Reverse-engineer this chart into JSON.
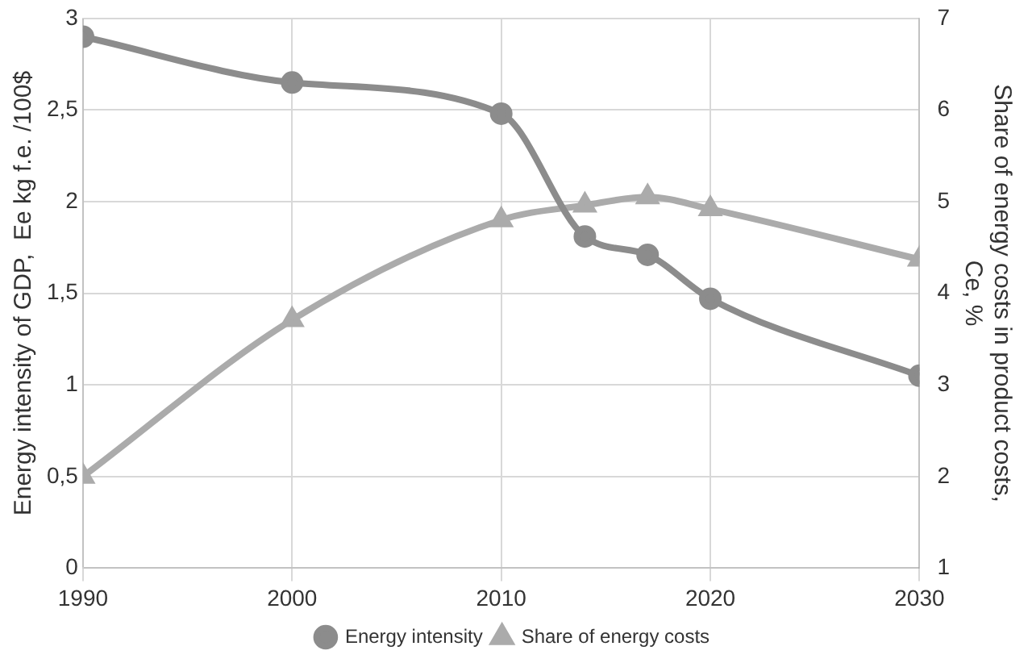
{
  "chart_data": {
    "type": "line",
    "xlabel": null,
    "ylabel": "Energy intensity of GDP,  Ee kg f.e. /100$",
    "y2label": "Share of energy costs in product costs, Ce, %",
    "x": [
      1990,
      2000,
      2010,
      2014,
      2017,
      2020,
      2030
    ],
    "series": [
      {
        "name": "Energy intensity",
        "color": "#8c8c8c",
        "marker": "circle",
        "values": [
          2.9,
          2.65,
          2.48,
          1.81,
          1.71,
          1.47,
          1.05
        ]
      },
      {
        "name": "Share of energy costs",
        "color": "#ababab",
        "marker": "triangle",
        "axis": "y2",
        "values": [
          2.0,
          3.71,
          4.8,
          4.96,
          5.05,
          4.92,
          4.37
        ]
      }
    ],
    "xlim": [
      1990,
      2030
    ],
    "xticks": [
      1990,
      2000,
      2010,
      2020,
      2030
    ],
    "ylim": [
      0,
      3
    ],
    "yticks": [
      0,
      {
        "value": 0.5,
        "label": "0,5"
      },
      1,
      {
        "value": 1.5,
        "label": "1,5"
      },
      2,
      {
        "value": 2.5,
        "label": "2,5"
      },
      3
    ],
    "y2lim": [
      1,
      7
    ],
    "y2ticks": [
      1,
      2,
      3,
      4,
      5,
      6,
      7
    ],
    "grid": true,
    "legend": "bottom",
    "line_style": "solid"
  }
}
